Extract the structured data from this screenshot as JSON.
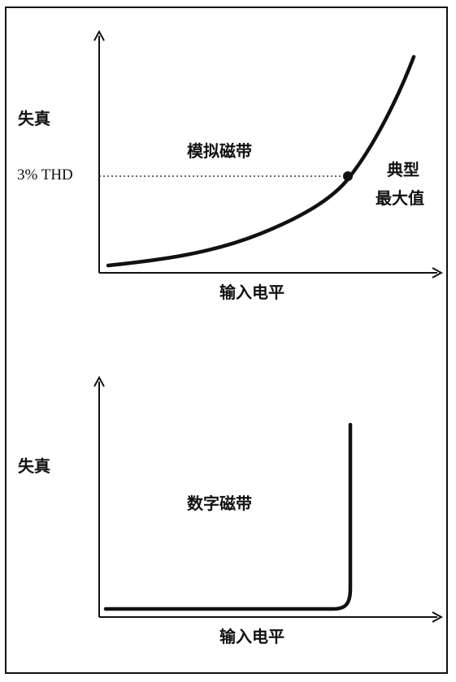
{
  "top_panel": {
    "y_label": "失真",
    "thd_label": "3% THD",
    "curve_label": "模拟磁带",
    "point_label_line1": "典型",
    "point_label_line2": "最大值",
    "x_label": "输入电平"
  },
  "bottom_panel": {
    "y_label": "失真",
    "curve_label": "数字磁带",
    "x_label": "输入电平"
  },
  "colors": {
    "ink": "#111111"
  }
}
